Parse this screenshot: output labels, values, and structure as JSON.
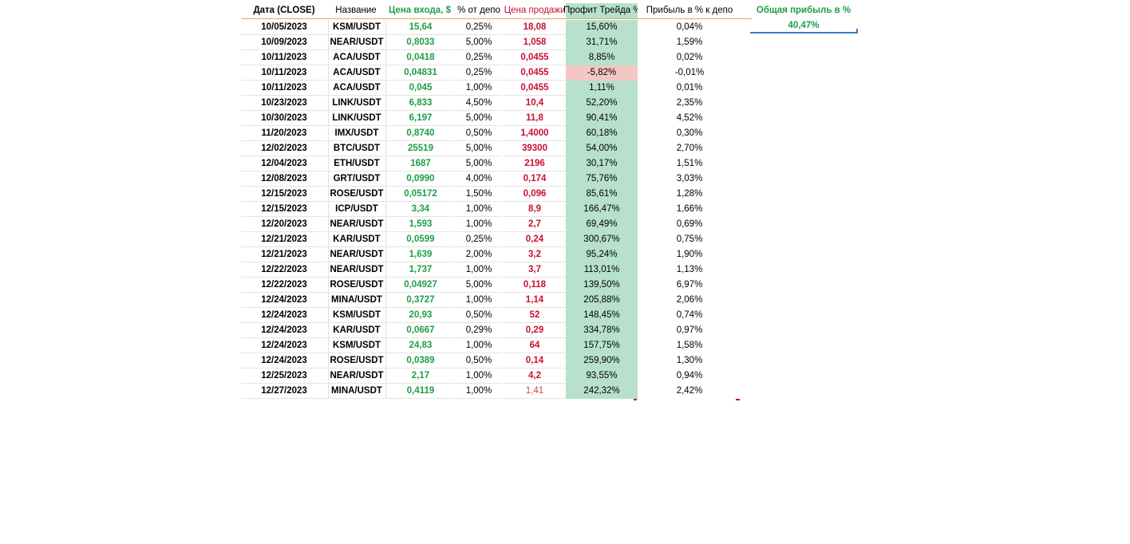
{
  "headers": {
    "date": "Дата (CLOSE)",
    "name": "Название",
    "entry": "Цена входа, $",
    "pct_depo": "% от депо",
    "sell": "Цена продажи",
    "trade_profit": "Профит Трейда %",
    "profit_depo": "Прибыль в % к депо",
    "total_profit": "Общая прибыль в %"
  },
  "total_profit_value": "40,47%",
  "colors": {
    "green": "#1e9e48",
    "red": "#c8102e",
    "profit_bg": "#b7e1cd",
    "loss_bg": "#f4c7c3"
  },
  "rows": [
    {
      "date": "10/05/2023",
      "name": "KSM/USDT",
      "entry": "15,64",
      "pct": "0,25%",
      "sell": "18,08",
      "profit": "15,60%",
      "depo": "0,04%"
    },
    {
      "date": "10/09/2023",
      "name": "NEAR/USDT",
      "entry": "0,8033",
      "pct": "5,00%",
      "sell": "1,058",
      "profit": "31,71%",
      "depo": "1,59%"
    },
    {
      "date": "10/11/2023",
      "name": "ACA/USDT",
      "entry": "0,0418",
      "pct": "0,25%",
      "sell": "0,0455",
      "profit": "8,85%",
      "depo": "0,02%"
    },
    {
      "date": "10/11/2023",
      "name": "ACA/USDT",
      "entry": "0,04831",
      "pct": "0,25%",
      "sell": "0,0455",
      "profit": "-5,82%",
      "depo": "-0,01%",
      "loss": true
    },
    {
      "date": "10/11/2023",
      "name": "ACA/USDT",
      "entry": "0,045",
      "pct": "1,00%",
      "sell": "0,0455",
      "profit": "1,11%",
      "depo": "0,01%"
    },
    {
      "date": "10/23/2023",
      "name": "LINK/USDT",
      "entry": "6,833",
      "pct": "4,50%",
      "sell": "10,4",
      "profit": "52,20%",
      "depo": "2,35%"
    },
    {
      "date": "10/30/2023",
      "name": "LINK/USDT",
      "entry": "6,197",
      "pct": "5,00%",
      "sell": "11,8",
      "profit": "90,41%",
      "depo": "4,52%"
    },
    {
      "date": "11/20/2023",
      "name": "IMX/USDT",
      "entry": "0,8740",
      "pct": "0,50%",
      "sell": "1,4000",
      "profit": "60,18%",
      "depo": "0,30%"
    },
    {
      "date": "12/02/2023",
      "name": "BTC/USDT",
      "entry": "25519",
      "pct": "5,00%",
      "sell": "39300",
      "profit": "54,00%",
      "depo": "2,70%"
    },
    {
      "date": "12/04/2023",
      "name": "ETH/USDT",
      "entry": "1687",
      "pct": "5,00%",
      "sell": "2196",
      "profit": "30,17%",
      "depo": "1,51%"
    },
    {
      "date": "12/08/2023",
      "name": "GRT/USDT",
      "entry": "0,0990",
      "pct": "4,00%",
      "sell": "0,174",
      "profit": "75,76%",
      "depo": "3,03%"
    },
    {
      "date": "12/15/2023",
      "name": "ROSE/USDT",
      "entry": "0,05172",
      "pct": "1,50%",
      "sell": "0,096",
      "profit": "85,61%",
      "depo": "1,28%"
    },
    {
      "date": "12/15/2023",
      "name": "ICP/USDT",
      "entry": "3,34",
      "pct": "1,00%",
      "sell": "8,9",
      "profit": "166,47%",
      "depo": "1,66%"
    },
    {
      "date": "12/20/2023",
      "name": "NEAR/USDT",
      "entry": "1,593",
      "pct": "1,00%",
      "sell": "2,7",
      "profit": "69,49%",
      "depo": "0,69%"
    },
    {
      "date": "12/21/2023",
      "name": "KAR/USDT",
      "entry": "0,0599",
      "pct": "0,25%",
      "sell": "0,24",
      "profit": "300,67%",
      "depo": "0,75%"
    },
    {
      "date": "12/21/2023",
      "name": "NEAR/USDT",
      "entry": "1,639",
      "pct": "2,00%",
      "sell": "3,2",
      "profit": "95,24%",
      "depo": "1,90%"
    },
    {
      "date": "12/22/2023",
      "name": "NEAR/USDT",
      "entry": "1,737",
      "pct": "1,00%",
      "sell": "3,7",
      "profit": "113,01%",
      "depo": "1,13%"
    },
    {
      "date": "12/22/2023",
      "name": "ROSE/USDT",
      "entry": "0,04927",
      "pct": "5,00%",
      "sell": "0,118",
      "profit": "139,50%",
      "depo": "6,97%"
    },
    {
      "date": "12/24/2023",
      "name": "MINA/USDT",
      "entry": "0,3727",
      "pct": "1,00%",
      "sell": "1,14",
      "profit": "205,88%",
      "depo": "2,06%"
    },
    {
      "date": "12/24/2023",
      "name": "KSM/USDT",
      "entry": "20,93",
      "pct": "0,50%",
      "sell": "52",
      "profit": "148,45%",
      "depo": "0,74%"
    },
    {
      "date": "12/24/2023",
      "name": "KAR/USDT",
      "entry": "0,0667",
      "pct": "0,29%",
      "sell": "0,29",
      "profit": "334,78%",
      "depo": "0,97%"
    },
    {
      "date": "12/24/2023",
      "name": "KSM/USDT",
      "entry": "24,83",
      "pct": "1,00%",
      "sell": "64",
      "profit": "157,75%",
      "depo": "1,58%"
    },
    {
      "date": "12/24/2023",
      "name": "ROSE/USDT",
      "entry": "0,0389",
      "pct": "0,50%",
      "sell": "0,14",
      "profit": "259,90%",
      "depo": "1,30%"
    },
    {
      "date": "12/25/2023",
      "name": "NEAR/USDT",
      "entry": "2,17",
      "pct": "1,00%",
      "sell": "4,2",
      "profit": "93,55%",
      "depo": "0,94%"
    },
    {
      "date": "12/27/2023",
      "name": "MINA/USDT",
      "entry": "0,4119",
      "pct": "1,00%",
      "sell": "1,41",
      "profit": "242,32%",
      "depo": "2,42%",
      "sell_light": true
    }
  ]
}
